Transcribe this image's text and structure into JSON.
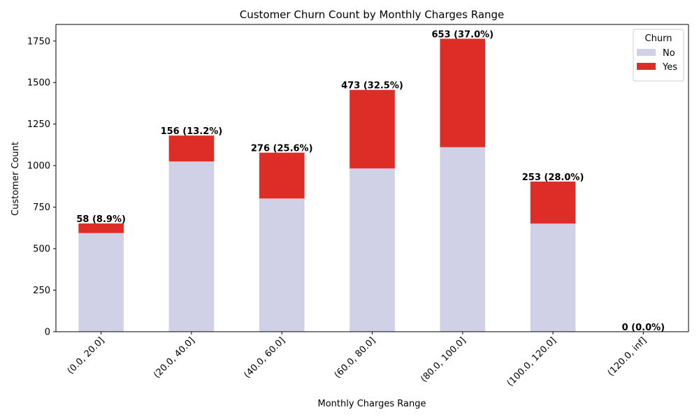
{
  "chart_data": {
    "type": "bar",
    "stacked": true,
    "title": "Customer Churn Count by Monthly Charges Range",
    "xlabel": "Monthly Charges Range",
    "ylabel": "Customer Count",
    "categories": [
      "(0.0, 20.0]",
      "(20.0, 40.0]",
      "(40.0, 60.0]",
      "(60.0, 80.0]",
      "(80.0, 100.0]",
      "(100.0, 120.0]",
      "(120.0, inf]"
    ],
    "series": [
      {
        "name": "No",
        "color": "#d0d1e6",
        "values": [
          594,
          1025,
          802,
          983,
          1111,
          651,
          0
        ]
      },
      {
        "name": "Yes",
        "color": "#de2d26",
        "values": [
          58,
          156,
          276,
          473,
          653,
          253,
          0
        ]
      }
    ],
    "data_labels": [
      "58 (8.9%)",
      "156 (13.2%)",
      "276 (25.6%)",
      "473 (32.5%)",
      "653 (37.0%)",
      "253 (28.0%)",
      "0 (0.0%)"
    ],
    "ylim": [
      0,
      1850
    ],
    "yticks": [
      0,
      250,
      500,
      750,
      1000,
      1250,
      1500,
      1750
    ],
    "legend": {
      "title": "Churn",
      "placement": "top-right"
    },
    "grid": false
  }
}
